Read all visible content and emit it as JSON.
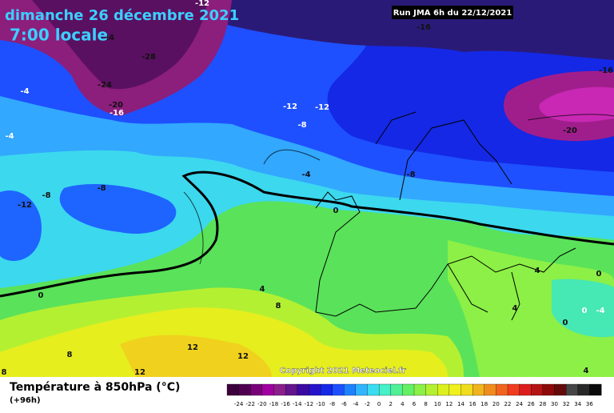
{
  "header": {
    "date": "dimanche 26 décembre 2021",
    "time": "7:00 locale",
    "run": "Run JMA 6h du 22/12/2021"
  },
  "map": {
    "contour_labels": [
      -12,
      -16,
      -16,
      -24,
      -28,
      -24,
      -20,
      -16,
      -4,
      -12,
      -12,
      -8,
      -20,
      -4,
      -4,
      -8,
      -8,
      -8,
      -12,
      0,
      0,
      4,
      8,
      4,
      0,
      4,
      0,
      -4,
      0,
      12,
      12,
      8,
      12,
      8,
      4
    ],
    "copyright": "Copyright 2021 Meteociel.fr"
  },
  "footer": {
    "title": "Température à 850hPa (°C)",
    "lead": "(+96h)"
  },
  "colorbar": {
    "ticks": [
      -24,
      -22,
      -20,
      -18,
      -16,
      -14,
      -12,
      -10,
      -8,
      -6,
      -4,
      -2,
      0,
      2,
      4,
      6,
      8,
      10,
      12,
      14,
      16,
      18,
      20,
      22,
      24,
      26,
      28,
      30,
      32,
      34,
      36
    ],
    "colors": [
      "#3c003c",
      "#500050",
      "#780078",
      "#a000a0",
      "#8c1e8c",
      "#64148c",
      "#3c0aa0",
      "#2814c8",
      "#1428e6",
      "#1e50ff",
      "#1e82ff",
      "#32b4ff",
      "#3cdcf0",
      "#46f0c8",
      "#50f096",
      "#64f064",
      "#8cf046",
      "#b4f032",
      "#dcf01e",
      "#f0f01e",
      "#f0dc1e",
      "#f0b41e",
      "#f08c1e",
      "#f0641e",
      "#f03c1e",
      "#dc1e1e",
      "#b41414",
      "#8c0a0a",
      "#640a0a",
      "#464646",
      "#282828",
      "#0a0a0a"
    ]
  }
}
